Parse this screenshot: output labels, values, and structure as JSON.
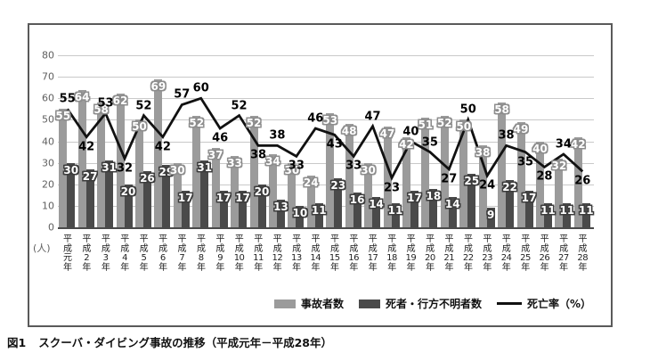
{
  "figure": {
    "caption_label": "図1",
    "caption_title": "スクーバ・ダイビング事故の推移（平成元年－平成28年）"
  },
  "axis": {
    "unit_label": "(人)",
    "yticks": [
      0,
      10,
      20,
      30,
      40,
      50,
      60,
      70,
      80
    ]
  },
  "chart_data": {
    "type": "bar+line",
    "title": "スクーバ・ダイビング事故の推移（平成元年－平成28年）",
    "ylabel": "(人)",
    "ylim": [
      0,
      80
    ],
    "grid": true,
    "legend_position": "bottom-right-inside",
    "categories": [
      "平成元年",
      "平成2年",
      "平成3年",
      "平成4年",
      "平成5年",
      "平成6年",
      "平成7年",
      "平成8年",
      "平成9年",
      "平成10年",
      "平成11年",
      "平成12年",
      "平成13年",
      "平成14年",
      "平成15年",
      "平成16年",
      "平成17年",
      "平成18年",
      "平成19年",
      "平成20年",
      "平成21年",
      "平成22年",
      "平成23年",
      "平成24年",
      "平成25年",
      "平成26年",
      "平成27年",
      "平成28年"
    ],
    "series": [
      {
        "name": "事故者数",
        "type": "bar",
        "color": "#9b9b9b",
        "values": [
          55,
          64,
          58,
          62,
          50,
          69,
          30,
          52,
          37,
          33,
          52,
          34,
          30,
          24,
          53,
          48,
          30,
          47,
          42,
          51,
          52,
          50,
          38,
          58,
          49,
          40,
          32,
          42
        ]
      },
      {
        "name": "死者・行方不明者数",
        "type": "bar",
        "color": "#4a4a4a",
        "values": [
          30,
          27,
          31,
          20,
          26,
          29,
          17,
          31,
          17,
          17,
          20,
          13,
          10,
          11,
          23,
          16,
          14,
          11,
          17,
          18,
          14,
          25,
          9,
          22,
          17,
          11,
          11,
          11
        ]
      },
      {
        "name": "死亡率（%）",
        "type": "line",
        "color": "#111111",
        "values": [
          55,
          42,
          53,
          32,
          52,
          42,
          57,
          60,
          46,
          52,
          38,
          38,
          33,
          46,
          43,
          33,
          47,
          23,
          40,
          35,
          27,
          50,
          24,
          38,
          35,
          28,
          34,
          26
        ]
      }
    ],
    "rate_label_side": [
      "above",
      "below",
      "above",
      "below",
      "above",
      "below",
      "above",
      "above",
      "below",
      "above",
      "below",
      "above",
      "below",
      "above",
      "below",
      "below",
      "above",
      "below",
      "above",
      "above",
      "below",
      "above",
      "below",
      "above",
      "below",
      "below",
      "above",
      "below"
    ]
  }
}
